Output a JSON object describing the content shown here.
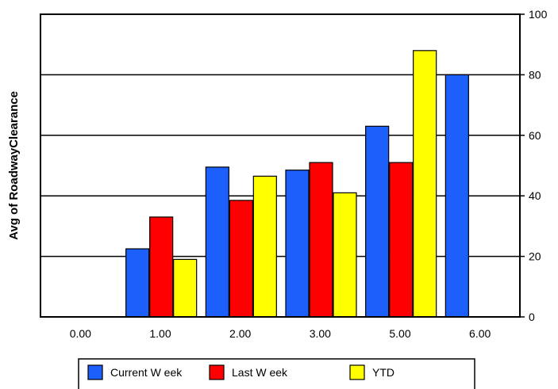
{
  "chart_data": {
    "type": "bar",
    "title": "",
    "xlabel": "",
    "ylabel": "Avg of RoadwayClearance",
    "y_axis_side": "right",
    "ylim": [
      0,
      100
    ],
    "yticks": [
      0,
      20,
      40,
      60,
      80,
      100
    ],
    "grid": "horizontal",
    "legend_position": "bottom",
    "categories": [
      "0.00",
      "1.00",
      "2.00",
      "3.00",
      "5.00",
      "6.00"
    ],
    "series": [
      {
        "name": "Current W eek",
        "color": "#1c5ffb",
        "values": [
          null,
          22.5,
          49.5,
          48.5,
          63,
          80
        ]
      },
      {
        "name": "Last W eek",
        "color": "#ff0000",
        "values": [
          null,
          33,
          38.5,
          51,
          51,
          null
        ]
      },
      {
        "name": "YTD",
        "color": "#ffff00",
        "values": [
          null,
          19,
          46.5,
          41,
          88,
          null
        ]
      }
    ]
  }
}
